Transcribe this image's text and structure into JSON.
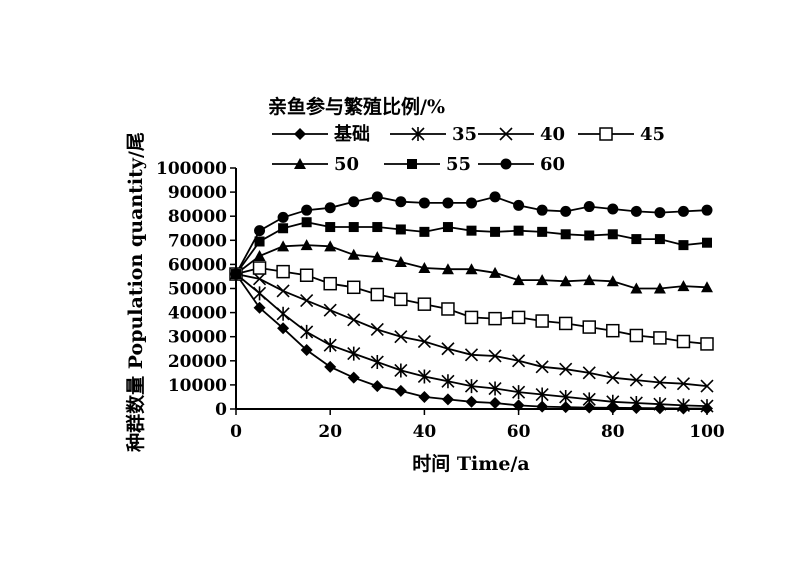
{
  "chart_data": {
    "type": "line",
    "legend_title": "亲鱼参与繁殖比例/%",
    "xlabel": "时间 Time/a",
    "ylabel": "种群数量 Population quantity/尾",
    "xlim": [
      0,
      100
    ],
    "ylim": [
      0,
      100000
    ],
    "x_ticks": [
      "0",
      "20",
      "40",
      "60",
      "80",
      "100"
    ],
    "y_ticks": [
      "0",
      "10000",
      "20000",
      "30000",
      "40000",
      "50000",
      "60000",
      "70000",
      "80000",
      "90000",
      "100000"
    ],
    "grid": false,
    "legend_position": "top",
    "x": [
      0,
      5,
      10,
      15,
      20,
      25,
      30,
      35,
      40,
      45,
      50,
      55,
      60,
      65,
      70,
      75,
      80,
      85,
      90,
      95,
      100
    ],
    "series": [
      {
        "name": "基础",
        "marker": "diamond",
        "values": [
          56000,
          42000,
          33500,
          24500,
          17500,
          13000,
          9500,
          7500,
          5000,
          4000,
          3000,
          2500,
          1500,
          1000,
          800,
          600,
          500,
          400,
          300,
          200,
          200
        ]
      },
      {
        "name": "35",
        "marker": "asterisk",
        "values": [
          56000,
          48000,
          39500,
          32000,
          26500,
          23000,
          19500,
          16000,
          13500,
          11500,
          9500,
          8500,
          7000,
          6000,
          5000,
          4000,
          3000,
          2500,
          2000,
          1500,
          1200
        ]
      },
      {
        "name": "40",
        "marker": "x",
        "values": [
          56000,
          54000,
          49000,
          45000,
          41000,
          37000,
          33000,
          30000,
          28000,
          25000,
          22500,
          22000,
          20000,
          17500,
          16500,
          15000,
          13000,
          12000,
          11000,
          10500,
          9500
        ]
      },
      {
        "name": "45",
        "marker": "open-square",
        "values": [
          56000,
          58500,
          57000,
          55500,
          52000,
          50500,
          47500,
          45500,
          43500,
          41500,
          38000,
          37500,
          38000,
          36500,
          35500,
          34000,
          32500,
          30500,
          29500,
          28000,
          27000
        ]
      },
      {
        "name": "50",
        "marker": "triangle",
        "values": [
          56000,
          63500,
          67500,
          68000,
          67500,
          64000,
          63000,
          61000,
          58500,
          58000,
          58000,
          56500,
          53500,
          53500,
          53000,
          53500,
          53000,
          50000,
          50000,
          51000,
          50500
        ]
      },
      {
        "name": "55",
        "marker": "filled-square",
        "values": [
          56000,
          69500,
          75000,
          77500,
          75500,
          75500,
          75500,
          74500,
          73500,
          75500,
          74000,
          73500,
          74000,
          73500,
          72500,
          72000,
          72500,
          70500,
          70500,
          68000,
          69000
        ]
      },
      {
        "name": "60",
        "marker": "circle",
        "values": [
          56000,
          74000,
          79500,
          82500,
          83500,
          86000,
          88000,
          86000,
          85500,
          85500,
          85500,
          88000,
          84500,
          82500,
          82000,
          84000,
          83000,
          82000,
          81500,
          82000,
          82500
        ]
      }
    ]
  }
}
